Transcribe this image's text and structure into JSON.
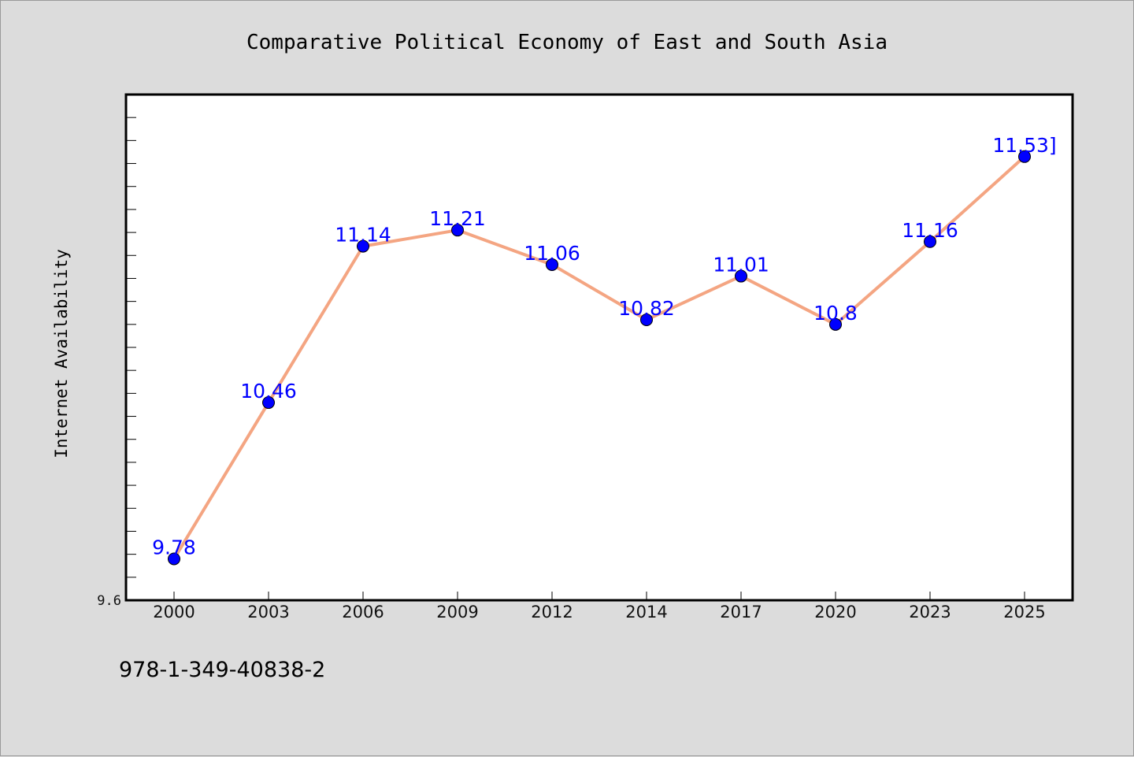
{
  "chart_data": {
    "type": "line",
    "title": "Comparative Political Economy of East and South Asia",
    "xlabel": "",
    "ylabel": "Internet Availability",
    "categories": [
      "2000",
      "2003",
      "2006",
      "2009",
      "2012",
      "2014",
      "2017",
      "2020",
      "2023",
      "2025"
    ],
    "series": [
      {
        "values": [
          9.78,
          10.46,
          11.14,
          11.21,
          11.06,
          10.82,
          11.01,
          10.8,
          11.16,
          11.53
        ]
      }
    ],
    "data_labels": [
      "9.78",
      "10.46",
      "11.14",
      "11.21",
      "11.06",
      "10.82",
      "11.01",
      "10.8",
      "11.16",
      "11.53]"
    ],
    "ylim": [
      9.6,
      11.8
    ],
    "y_tick_labels": [
      "9.6"
    ],
    "grid": false,
    "legend": "none",
    "colors": {
      "line": "#f4a582",
      "marker": "#0000ff",
      "label": "#0000ff",
      "plot_background": "#ffffff",
      "figure_background": "#dcdcdc"
    }
  },
  "footer": {
    "code": "978-1-349-40838-2"
  }
}
